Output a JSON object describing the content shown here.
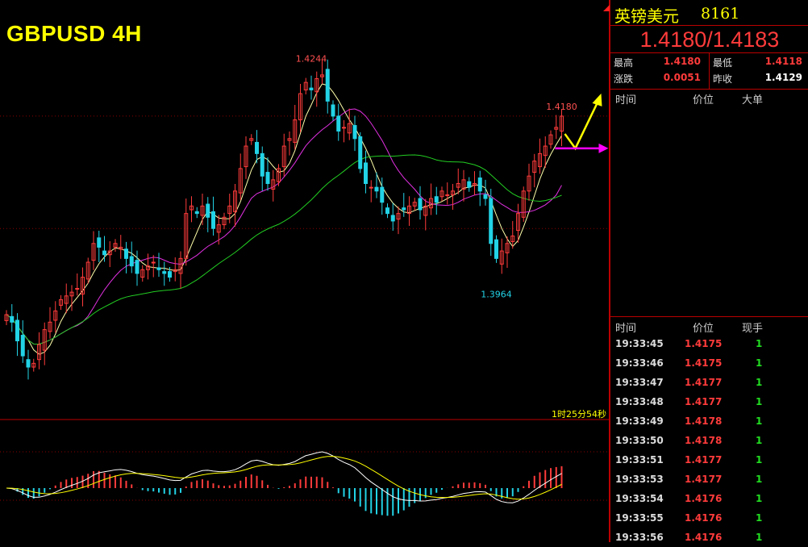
{
  "header": {
    "title": "GBPUSD 4H",
    "countdown": "1时25分54秒"
  },
  "panel": {
    "name": "英镑美元",
    "code": "8161",
    "quote": "1.4180/1.4183",
    "stats": {
      "high_label": "最高",
      "high": "1.4180",
      "low_label": "最低",
      "low": "1.4118",
      "change_label": "涨跌",
      "change": "0.0051",
      "prev_close_label": "昨收",
      "prev_close": "1.4129"
    },
    "orders_header": {
      "time": "时间",
      "price": "价位",
      "big_order": "大单"
    },
    "trades_header": {
      "time": "时间",
      "price": "价位",
      "volume": "现手"
    },
    "trades": [
      {
        "time": "19:33:45",
        "price": "1.4175",
        "volume": "1"
      },
      {
        "time": "19:33:46",
        "price": "1.4175",
        "volume": "1"
      },
      {
        "time": "19:33:47",
        "price": "1.4177",
        "volume": "1"
      },
      {
        "time": "19:33:48",
        "price": "1.4177",
        "volume": "1"
      },
      {
        "time": "19:33:49",
        "price": "1.4178",
        "volume": "1"
      },
      {
        "time": "19:33:50",
        "price": "1.4178",
        "volume": "1"
      },
      {
        "time": "19:33:51",
        "price": "1.4177",
        "volume": "1"
      },
      {
        "time": "19:33:53",
        "price": "1.4177",
        "volume": "1"
      },
      {
        "time": "19:33:54",
        "price": "1.4176",
        "volume": "1"
      },
      {
        "time": "19:33:55",
        "price": "1.4176",
        "volume": "1"
      },
      {
        "time": "19:33:56",
        "price": "1.4176",
        "volume": "1"
      }
    ]
  },
  "chart_data": {
    "type": "candlestick",
    "symbol": "GBPUSD",
    "timeframe": "4H",
    "ylim": [
      1.3775,
      1.4335
    ],
    "reference_lines": [
      1.418,
      1.403
    ],
    "annotations": [
      {
        "text": "1.4244",
        "price": 1.4244,
        "bar": 56,
        "kind": "high"
      },
      {
        "text": "1.3964",
        "price": 1.3964,
        "bar": 90,
        "kind": "low"
      },
      {
        "text": "1.4180",
        "price": 1.418,
        "bar": 102,
        "kind": "last"
      }
    ],
    "colors": {
      "up": "#ff3b3b",
      "down": "#22d3e6",
      "ma_fast": "#ffffaa",
      "ma_mid": "#e030e0",
      "ma_slow": "#22cc22",
      "arrow_up": "#ffff00",
      "arrow_side": "#ff00ff"
    },
    "close": [
      1.3915,
      1.3905,
      1.388,
      1.386,
      1.3845,
      1.385,
      1.3875,
      1.3895,
      1.3905,
      1.392,
      1.3935,
      1.394,
      1.3945,
      1.395,
      1.3965,
      1.3985,
      1.401,
      1.4005,
      1.3995,
      1.4,
      1.401,
      1.4005,
      1.399,
      1.398,
      1.397,
      1.3975,
      1.398,
      1.3985,
      1.3975,
      1.397,
      1.3965,
      1.3975,
      1.399,
      1.405,
      1.406,
      1.405,
      1.406,
      1.4045,
      1.403,
      1.4035,
      1.4045,
      1.406,
      1.408,
      1.411,
      1.414,
      1.415,
      1.413,
      1.41,
      1.409,
      1.4095,
      1.411,
      1.414,
      1.415,
      1.4175,
      1.421,
      1.4225,
      1.4215,
      1.423,
      1.4235,
      1.42,
      1.418,
      1.416,
      1.4165,
      1.417,
      1.415,
      1.411,
      1.409,
      1.4085,
      1.408,
      1.4065,
      1.405,
      1.404,
      1.405,
      1.4055,
      1.406,
      1.4065,
      1.4055,
      1.406,
      1.407,
      1.4065,
      1.408,
      1.4075,
      1.408,
      1.409,
      1.4095,
      1.4085,
      1.409,
      1.408,
      1.407,
      1.401,
      1.399,
      1.4,
      1.401,
      1.402,
      1.405,
      1.408,
      1.41,
      1.412,
      1.413,
      1.414,
      1.4155,
      1.4165,
      1.418
    ]
  }
}
